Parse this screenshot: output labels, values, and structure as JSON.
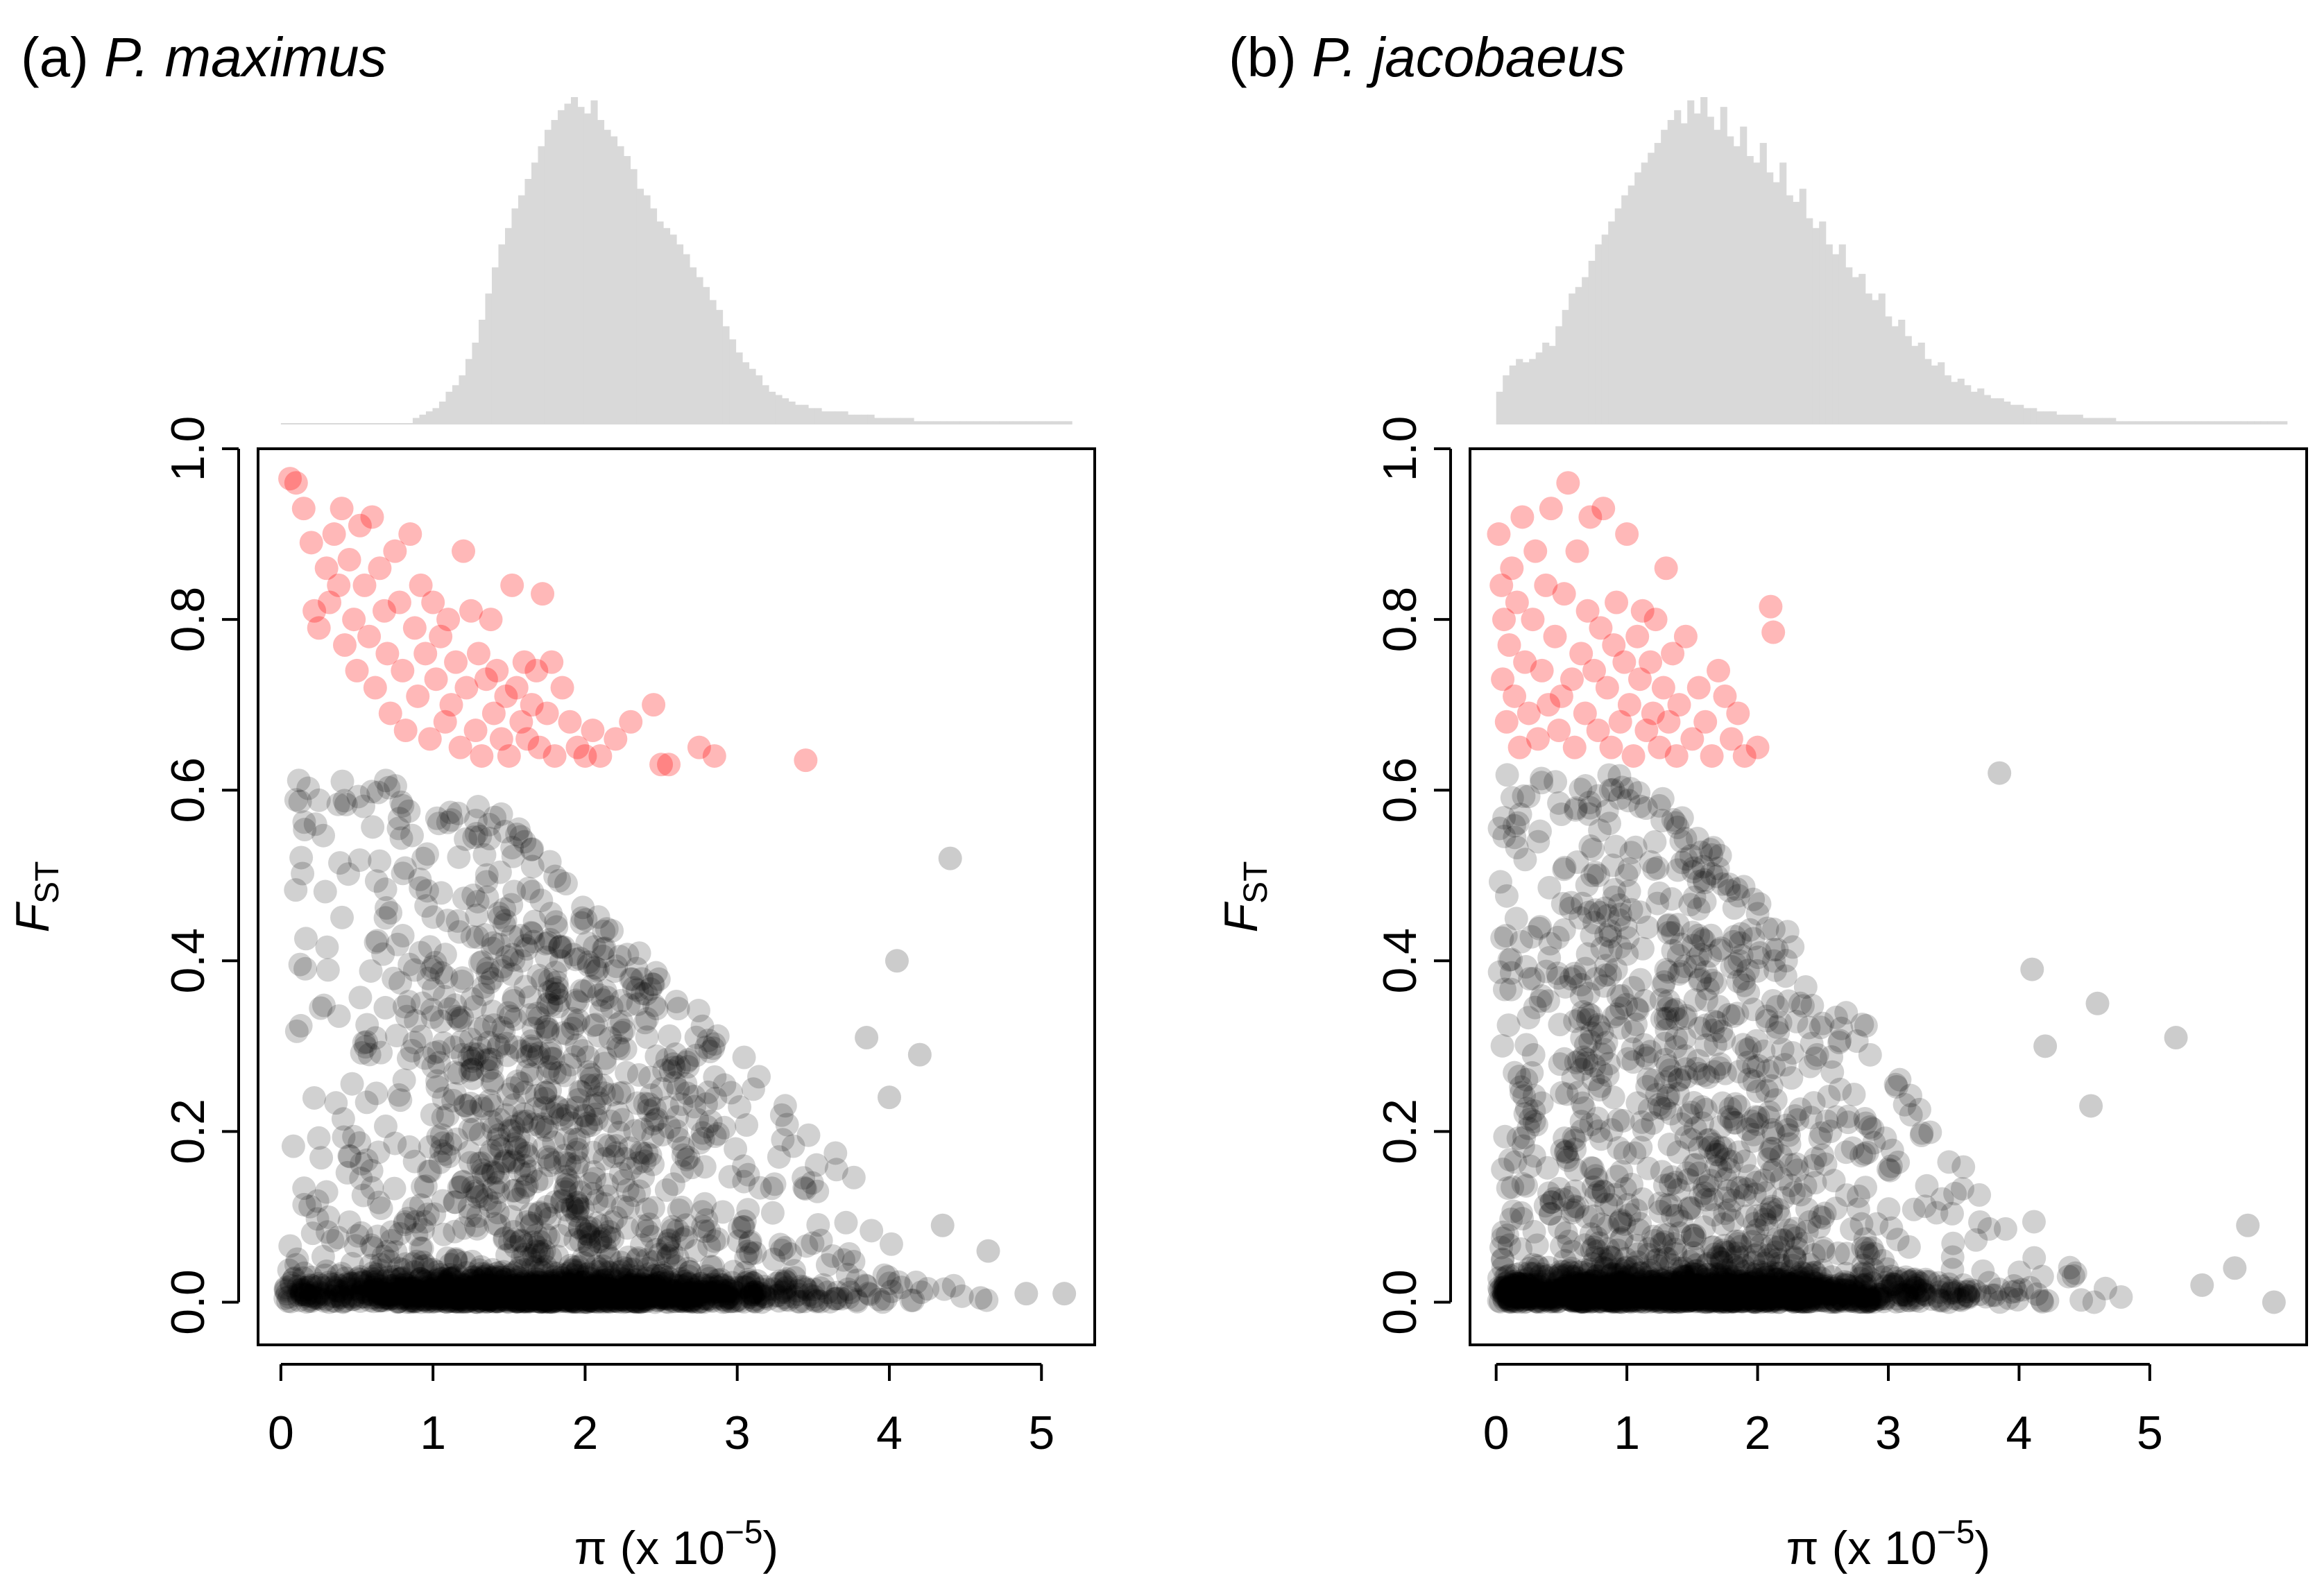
{
  "chart_data": [
    {
      "type": "scatter",
      "title_prefix": "(a) ",
      "title_species": "P. maximus",
      "xlabel_pi": "π",
      "xlabel_pre": " (x 10",
      "xlabel_exp": "−5",
      "xlabel_post": ")",
      "ylabel_main": "F",
      "ylabel_sub": "ST",
      "xlim": [
        -0.15,
        5.35
      ],
      "ylim": [
        -0.05,
        1.0
      ],
      "xticks": [
        "0",
        "1",
        "2",
        "3",
        "4",
        "5"
      ],
      "yticks": [
        "0.0",
        "0.2",
        "0.4",
        "0.6",
        "0.8",
        "1.0"
      ],
      "threshold": 0.63,
      "colors": {
        "outlier": "#ff0000",
        "point": "#000000",
        "histogram": "#d9d9d9"
      },
      "marginal_histogram_of_pi": [
        0,
        0,
        0,
        0,
        0,
        0,
        0,
        0,
        0,
        0,
        0,
        0,
        0,
        0,
        0,
        0,
        0,
        0,
        0,
        0,
        0.02,
        0.03,
        0.04,
        0.05,
        0.07,
        0.1,
        0.12,
        0.15,
        0.2,
        0.25,
        0.32,
        0.4,
        0.48,
        0.55,
        0.6,
        0.66,
        0.7,
        0.75,
        0.8,
        0.85,
        0.9,
        0.93,
        0.96,
        0.98,
        1.0,
        0.97,
        0.95,
        0.99,
        0.93,
        0.9,
        0.88,
        0.85,
        0.82,
        0.78,
        0.72,
        0.7,
        0.66,
        0.62,
        0.6,
        0.58,
        0.55,
        0.52,
        0.48,
        0.45,
        0.42,
        0.38,
        0.35,
        0.3,
        0.26,
        0.22,
        0.19,
        0.17,
        0.15,
        0.12,
        0.1,
        0.09,
        0.08,
        0.07,
        0.06,
        0.06,
        0.05,
        0.05,
        0.04,
        0.04,
        0.04,
        0.04,
        0.03,
        0.03,
        0.03,
        0.03,
        0.02,
        0.02,
        0.02,
        0.02,
        0.02,
        0.02,
        0.01,
        0.01,
        0.01,
        0.01,
        0.01,
        0.01,
        0.01,
        0.01,
        0.01,
        0.01,
        0.01,
        0.01,
        0.01,
        0.01,
        0.01,
        0.01,
        0.01,
        0.01,
        0.01,
        0.01,
        0.01,
        0.01,
        0.01,
        0.01
      ],
      "outliers": [
        {
          "x": 0.06,
          "y": 0.965
        },
        {
          "x": 0.1,
          "y": 0.96
        },
        {
          "x": 0.15,
          "y": 0.93
        },
        {
          "x": 0.2,
          "y": 0.89
        },
        {
          "x": 0.22,
          "y": 0.81
        },
        {
          "x": 0.25,
          "y": 0.79
        },
        {
          "x": 0.3,
          "y": 0.86
        },
        {
          "x": 0.32,
          "y": 0.82
        },
        {
          "x": 0.35,
          "y": 0.9
        },
        {
          "x": 0.38,
          "y": 0.84
        },
        {
          "x": 0.4,
          "y": 0.93
        },
        {
          "x": 0.42,
          "y": 0.77
        },
        {
          "x": 0.45,
          "y": 0.87
        },
        {
          "x": 0.48,
          "y": 0.8
        },
        {
          "x": 0.5,
          "y": 0.74
        },
        {
          "x": 0.52,
          "y": 0.91
        },
        {
          "x": 0.55,
          "y": 0.84
        },
        {
          "x": 0.58,
          "y": 0.78
        },
        {
          "x": 0.6,
          "y": 0.92
        },
        {
          "x": 0.62,
          "y": 0.72
        },
        {
          "x": 0.65,
          "y": 0.86
        },
        {
          "x": 0.68,
          "y": 0.81
        },
        {
          "x": 0.7,
          "y": 0.76
        },
        {
          "x": 0.72,
          "y": 0.69
        },
        {
          "x": 0.75,
          "y": 0.88
        },
        {
          "x": 0.78,
          "y": 0.82
        },
        {
          "x": 0.8,
          "y": 0.74
        },
        {
          "x": 0.82,
          "y": 0.67
        },
        {
          "x": 0.85,
          "y": 0.9
        },
        {
          "x": 0.88,
          "y": 0.79
        },
        {
          "x": 0.9,
          "y": 0.71
        },
        {
          "x": 0.92,
          "y": 0.84
        },
        {
          "x": 0.95,
          "y": 0.76
        },
        {
          "x": 0.98,
          "y": 0.66
        },
        {
          "x": 1.0,
          "y": 0.82
        },
        {
          "x": 1.02,
          "y": 0.73
        },
        {
          "x": 1.05,
          "y": 0.78
        },
        {
          "x": 1.08,
          "y": 0.68
        },
        {
          "x": 1.1,
          "y": 0.8
        },
        {
          "x": 1.12,
          "y": 0.7
        },
        {
          "x": 1.15,
          "y": 0.75
        },
        {
          "x": 1.18,
          "y": 0.65
        },
        {
          "x": 1.2,
          "y": 0.88
        },
        {
          "x": 1.22,
          "y": 0.72
        },
        {
          "x": 1.25,
          "y": 0.81
        },
        {
          "x": 1.28,
          "y": 0.67
        },
        {
          "x": 1.3,
          "y": 0.76
        },
        {
          "x": 1.32,
          "y": 0.64
        },
        {
          "x": 1.35,
          "y": 0.73
        },
        {
          "x": 1.38,
          "y": 0.8
        },
        {
          "x": 1.4,
          "y": 0.69
        },
        {
          "x": 1.42,
          "y": 0.74
        },
        {
          "x": 1.45,
          "y": 0.66
        },
        {
          "x": 1.48,
          "y": 0.71
        },
        {
          "x": 1.5,
          "y": 0.64
        },
        {
          "x": 1.52,
          "y": 0.84
        },
        {
          "x": 1.55,
          "y": 0.72
        },
        {
          "x": 1.58,
          "y": 0.68
        },
        {
          "x": 1.6,
          "y": 0.75
        },
        {
          "x": 1.62,
          "y": 0.66
        },
        {
          "x": 1.65,
          "y": 0.7
        },
        {
          "x": 1.68,
          "y": 0.74
        },
        {
          "x": 1.7,
          "y": 0.65
        },
        {
          "x": 1.72,
          "y": 0.83
        },
        {
          "x": 1.75,
          "y": 0.69
        },
        {
          "x": 1.78,
          "y": 0.75
        },
        {
          "x": 1.8,
          "y": 0.64
        },
        {
          "x": 1.85,
          "y": 0.72
        },
        {
          "x": 1.9,
          "y": 0.68
        },
        {
          "x": 1.95,
          "y": 0.65
        },
        {
          "x": 2.0,
          "y": 0.64
        },
        {
          "x": 2.05,
          "y": 0.67
        },
        {
          "x": 2.1,
          "y": 0.64
        },
        {
          "x": 2.2,
          "y": 0.66
        },
        {
          "x": 2.3,
          "y": 0.68
        },
        {
          "x": 2.45,
          "y": 0.7
        },
        {
          "x": 2.5,
          "y": 0.63
        },
        {
          "x": 2.55,
          "y": 0.63
        },
        {
          "x": 2.75,
          "y": 0.65
        },
        {
          "x": 2.85,
          "y": 0.64
        },
        {
          "x": 3.45,
          "y": 0.635
        }
      ]
    },
    {
      "type": "scatter",
      "title_prefix": "(b) ",
      "title_species": "P. jacobaeus",
      "xlabel_pi": "π",
      "xlabel_pre": " (x 10",
      "xlabel_exp": "−5",
      "xlabel_post": ")",
      "ylabel_main": "F",
      "ylabel_sub": "ST",
      "xlim": [
        -0.2,
        6.2
      ],
      "ylim": [
        -0.05,
        1.0
      ],
      "xticks": [
        "0",
        "1",
        "2",
        "3",
        "4",
        "5"
      ],
      "yticks": [
        "0.0",
        "0.2",
        "0.4",
        "0.6",
        "0.8",
        "1.0"
      ],
      "threshold": 0.63,
      "colors": {
        "outlier": "#ff0000",
        "point": "#000000",
        "histogram": "#d9d9d9"
      },
      "marginal_histogram_of_pi": [
        0.1,
        0.15,
        0.18,
        0.2,
        0.19,
        0.2,
        0.22,
        0.25,
        0.24,
        0.3,
        0.35,
        0.4,
        0.42,
        0.45,
        0.5,
        0.55,
        0.58,
        0.62,
        0.66,
        0.7,
        0.73,
        0.77,
        0.8,
        0.83,
        0.86,
        0.9,
        0.93,
        0.96,
        0.92,
        0.99,
        0.95,
        1.0,
        0.94,
        0.9,
        0.97,
        0.88,
        0.85,
        0.91,
        0.82,
        0.8,
        0.86,
        0.77,
        0.74,
        0.8,
        0.7,
        0.68,
        0.72,
        0.63,
        0.6,
        0.62,
        0.55,
        0.52,
        0.55,
        0.48,
        0.45,
        0.46,
        0.4,
        0.38,
        0.4,
        0.33,
        0.3,
        0.32,
        0.27,
        0.24,
        0.25,
        0.2,
        0.18,
        0.19,
        0.15,
        0.13,
        0.14,
        0.12,
        0.1,
        0.11,
        0.09,
        0.08,
        0.08,
        0.07,
        0.06,
        0.06,
        0.05,
        0.05,
        0.04,
        0.04,
        0.04,
        0.03,
        0.03,
        0.03,
        0.03,
        0.02,
        0.02,
        0.02,
        0.02,
        0.02,
        0.01,
        0.01,
        0.01,
        0.01,
        0.01,
        0.01,
        0.01,
        0.01,
        0.01,
        0.01,
        0.01,
        0.01,
        0.01,
        0.01,
        0.01,
        0.01,
        0.01,
        0.01,
        0.01,
        0.01,
        0.01,
        0.01,
        0.01,
        0.01,
        0.01,
        0.01
      ],
      "outliers": [
        {
          "x": 0.02,
          "y": 0.9
        },
        {
          "x": 0.04,
          "y": 0.84
        },
        {
          "x": 0.05,
          "y": 0.73
        },
        {
          "x": 0.06,
          "y": 0.8
        },
        {
          "x": 0.08,
          "y": 0.68
        },
        {
          "x": 0.1,
          "y": 0.77
        },
        {
          "x": 0.12,
          "y": 0.86
        },
        {
          "x": 0.14,
          "y": 0.71
        },
        {
          "x": 0.16,
          "y": 0.82
        },
        {
          "x": 0.18,
          "y": 0.65
        },
        {
          "x": 0.2,
          "y": 0.92
        },
        {
          "x": 0.22,
          "y": 0.75
        },
        {
          "x": 0.25,
          "y": 0.69
        },
        {
          "x": 0.28,
          "y": 0.8
        },
        {
          "x": 0.3,
          "y": 0.88
        },
        {
          "x": 0.32,
          "y": 0.66
        },
        {
          "x": 0.35,
          "y": 0.74
        },
        {
          "x": 0.38,
          "y": 0.84
        },
        {
          "x": 0.4,
          "y": 0.7
        },
        {
          "x": 0.42,
          "y": 0.93
        },
        {
          "x": 0.45,
          "y": 0.78
        },
        {
          "x": 0.48,
          "y": 0.67
        },
        {
          "x": 0.5,
          "y": 0.71
        },
        {
          "x": 0.52,
          "y": 0.83
        },
        {
          "x": 0.55,
          "y": 0.96
        },
        {
          "x": 0.58,
          "y": 0.73
        },
        {
          "x": 0.6,
          "y": 0.65
        },
        {
          "x": 0.62,
          "y": 0.88
        },
        {
          "x": 0.65,
          "y": 0.76
        },
        {
          "x": 0.68,
          "y": 0.69
        },
        {
          "x": 0.7,
          "y": 0.81
        },
        {
          "x": 0.72,
          "y": 0.92
        },
        {
          "x": 0.75,
          "y": 0.74
        },
        {
          "x": 0.78,
          "y": 0.67
        },
        {
          "x": 0.8,
          "y": 0.79
        },
        {
          "x": 0.82,
          "y": 0.93
        },
        {
          "x": 0.85,
          "y": 0.72
        },
        {
          "x": 0.88,
          "y": 0.65
        },
        {
          "x": 0.9,
          "y": 0.77
        },
        {
          "x": 0.92,
          "y": 0.82
        },
        {
          "x": 0.95,
          "y": 0.68
        },
        {
          "x": 0.98,
          "y": 0.75
        },
        {
          "x": 1.0,
          "y": 0.9
        },
        {
          "x": 1.02,
          "y": 0.7
        },
        {
          "x": 1.05,
          "y": 0.64
        },
        {
          "x": 1.08,
          "y": 0.78
        },
        {
          "x": 1.1,
          "y": 0.73
        },
        {
          "x": 1.12,
          "y": 0.81
        },
        {
          "x": 1.15,
          "y": 0.67
        },
        {
          "x": 1.18,
          "y": 0.75
        },
        {
          "x": 1.2,
          "y": 0.69
        },
        {
          "x": 1.22,
          "y": 0.8
        },
        {
          "x": 1.25,
          "y": 0.65
        },
        {
          "x": 1.28,
          "y": 0.72
        },
        {
          "x": 1.3,
          "y": 0.86
        },
        {
          "x": 1.32,
          "y": 0.68
        },
        {
          "x": 1.35,
          "y": 0.76
        },
        {
          "x": 1.38,
          "y": 0.64
        },
        {
          "x": 1.4,
          "y": 0.7
        },
        {
          "x": 1.45,
          "y": 0.78
        },
        {
          "x": 1.5,
          "y": 0.66
        },
        {
          "x": 1.55,
          "y": 0.72
        },
        {
          "x": 1.6,
          "y": 0.68
        },
        {
          "x": 1.65,
          "y": 0.64
        },
        {
          "x": 1.7,
          "y": 0.74
        },
        {
          "x": 1.75,
          "y": 0.71
        },
        {
          "x": 1.8,
          "y": 0.66
        },
        {
          "x": 1.85,
          "y": 0.69
        },
        {
          "x": 1.9,
          "y": 0.64
        },
        {
          "x": 2.0,
          "y": 0.65
        },
        {
          "x": 2.1,
          "y": 0.815
        },
        {
          "x": 2.12,
          "y": 0.785
        }
      ]
    }
  ]
}
